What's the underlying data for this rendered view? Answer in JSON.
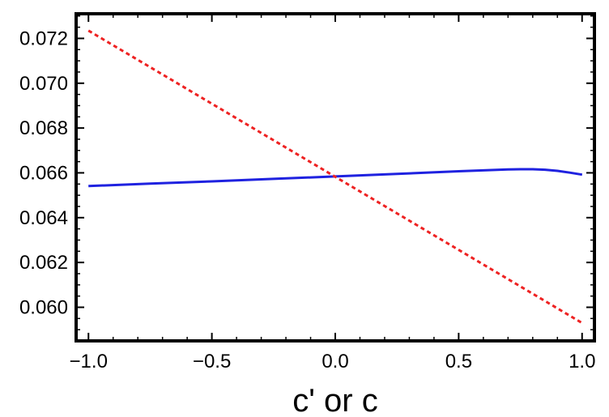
{
  "chart_data": {
    "type": "line",
    "xlabel": "c' or c",
    "ylabel": "",
    "xlim": [
      -1.05,
      1.05
    ],
    "ylim": [
      0.0585,
      0.0731
    ],
    "x_ticks": [
      {
        "value": -1.0,
        "label": "−1.0"
      },
      {
        "value": -0.5,
        "label": "−0.5"
      },
      {
        "value": 0.0,
        "label": "0.0"
      },
      {
        "value": 0.5,
        "label": "0.5"
      },
      {
        "value": 1.0,
        "label": "1.0"
      }
    ],
    "y_ticks": [
      {
        "value": 0.06,
        "label": "0.060"
      },
      {
        "value": 0.062,
        "label": "0.062"
      },
      {
        "value": 0.064,
        "label": "0.064"
      },
      {
        "value": 0.066,
        "label": "0.066"
      },
      {
        "value": 0.068,
        "label": "0.068"
      },
      {
        "value": 0.07,
        "label": "0.070"
      },
      {
        "value": 0.072,
        "label": "0.072"
      }
    ],
    "series": [
      {
        "color": "#1f22e0",
        "style": "solid",
        "x": [
          -1.0,
          -0.75,
          -0.5,
          -0.25,
          0.0,
          0.25,
          0.5,
          0.6,
          0.7,
          0.75,
          0.8,
          0.85,
          0.9,
          0.95,
          1.0
        ],
        "y": [
          0.06541,
          0.06552,
          0.06562,
          0.06573,
          0.06584,
          0.06595,
          0.06607,
          0.06611,
          0.06615,
          0.06616,
          0.06616,
          0.06614,
          0.06609,
          0.06601,
          0.06592
        ]
      },
      {
        "color": "#ee2222",
        "style": "dashed",
        "x": [
          -1.0,
          1.0
        ],
        "y": [
          0.07235,
          0.0593
        ]
      }
    ]
  }
}
